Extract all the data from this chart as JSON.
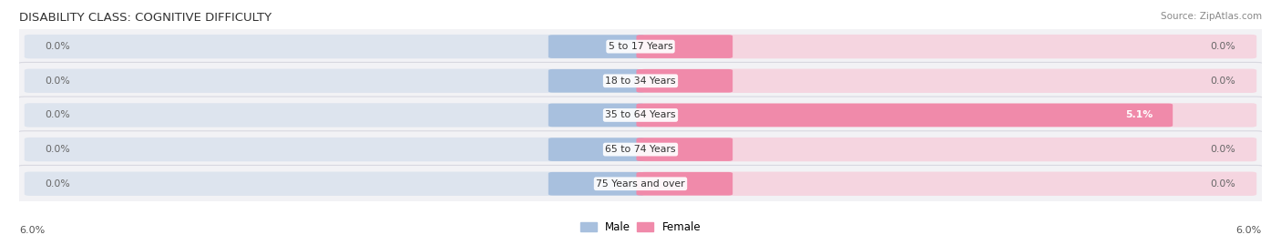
{
  "title": "DISABILITY CLASS: COGNITIVE DIFFICULTY",
  "source": "Source: ZipAtlas.com",
  "categories": [
    "5 to 17 Years",
    "18 to 34 Years",
    "35 to 64 Years",
    "65 to 74 Years",
    "75 Years and over"
  ],
  "male_values": [
    0.0,
    0.0,
    0.0,
    0.0,
    0.0
  ],
  "female_values": [
    0.0,
    0.0,
    5.1,
    0.0,
    0.0
  ],
  "max_val": 6.0,
  "male_color": "#a8c0de",
  "female_color": "#f08aaa",
  "bar_bg_color_male": "#dde4ee",
  "bar_bg_color_female": "#f5d5e0",
  "row_bg_color": "#f2f2f5",
  "row_bg_color_alt": "#eaeaf0",
  "title_fontsize": 9.5,
  "label_fontsize": 8,
  "axis_label_left": "6.0%",
  "axis_label_right": "6.0%",
  "value_label_color": "#666666",
  "category_label_color": "#333333",
  "row_edge_color": "#d8d8e0"
}
